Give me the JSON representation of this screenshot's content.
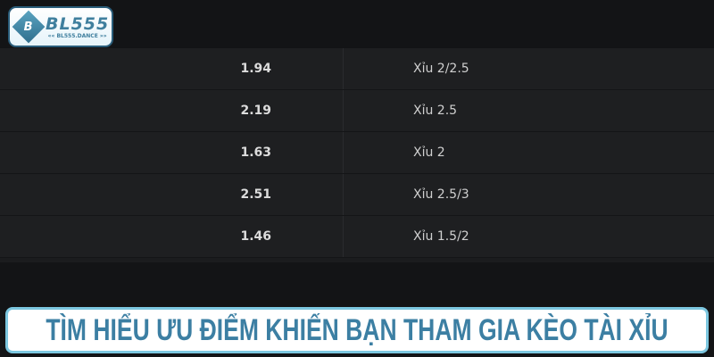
{
  "logo": {
    "mark": "B",
    "name": "BL555",
    "sub": "«« BL555.DANCE »»"
  },
  "rows": [
    {
      "odds": "1.94",
      "bet": "Xỉu 2/2.5"
    },
    {
      "odds": "2.19",
      "bet": "Xỉu 2.5"
    },
    {
      "odds": "1.63",
      "bet": "Xỉu 2"
    },
    {
      "odds": "2.51",
      "bet": "Xỉu 2.5/3"
    },
    {
      "odds": "1.46",
      "bet": "Xỉu 1.5/2"
    }
  ],
  "banner": {
    "title": "TÌM HIỂU ƯU ĐIỂM KHIẾN BẠN THAM GIA KÈO TÀI XỈU"
  },
  "colors": {
    "accent": "#3c7fa3",
    "background": "#131416",
    "row": "#1e1f21"
  }
}
